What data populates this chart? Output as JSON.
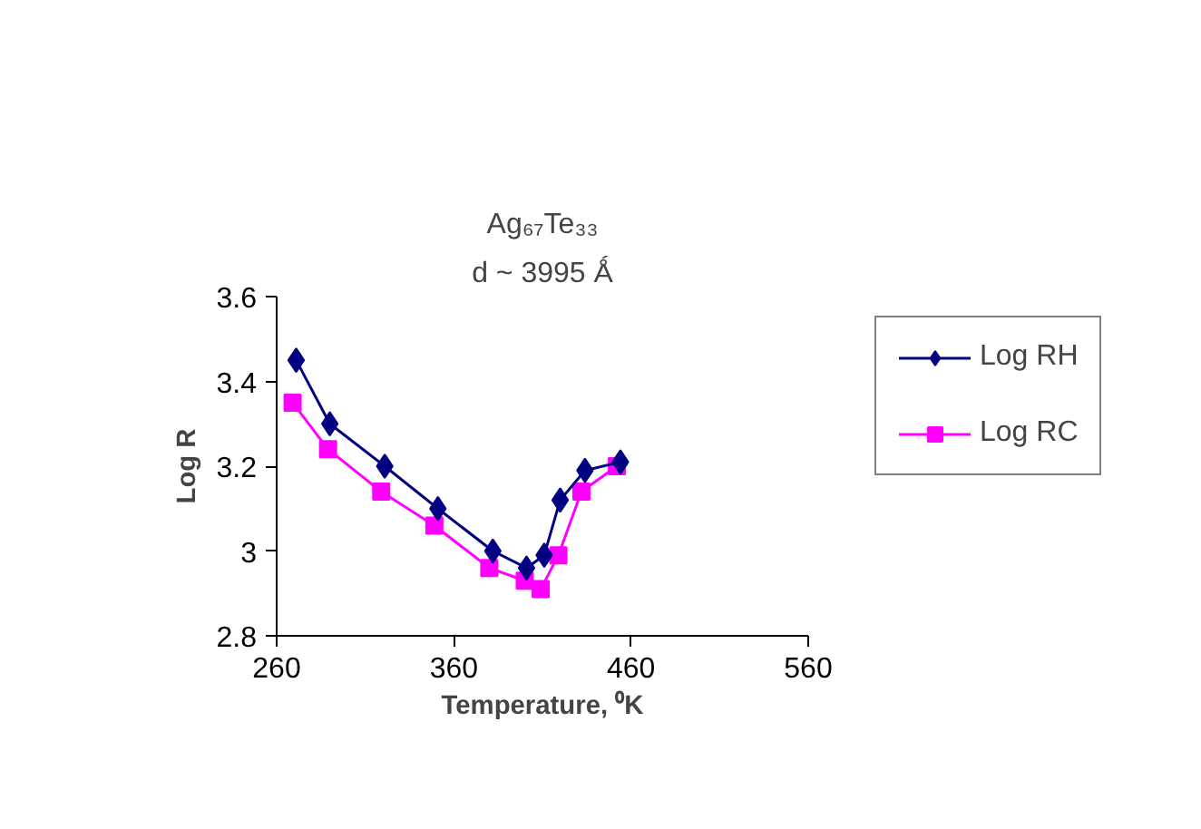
{
  "chart_data": {
    "type": "line",
    "title": "Ag₆₇Te₃₃",
    "subtitle": "d ~ 3995 Ǻ",
    "xlabel": "Temperature, ⁰K",
    "ylabel": "Log R",
    "xlim": [
      260,
      560
    ],
    "xticks": [
      260,
      360,
      460,
      560
    ],
    "ylim": [
      2.8,
      3.6
    ],
    "yticks": [
      2.8,
      3,
      3.2,
      3.4,
      3.6
    ],
    "grid": false,
    "legend": "right",
    "line_style": "solid",
    "series": [
      {
        "name": "Log RH",
        "color": "#000080",
        "marker": "diamond",
        "x": [
          271,
          290,
          321,
          351,
          382,
          401,
          411,
          420,
          434,
          454
        ],
        "values": [
          3.45,
          3.3,
          3.2,
          3.1,
          3.0,
          2.96,
          2.99,
          3.12,
          3.19,
          3.21
        ]
      },
      {
        "name": "Log RC",
        "color": "#ff00ff",
        "marker": "square",
        "x": [
          269,
          289,
          319,
          349,
          380,
          400,
          409,
          419,
          432,
          452
        ],
        "values": [
          3.35,
          3.24,
          3.14,
          3.06,
          2.96,
          2.93,
          2.91,
          2.99,
          3.14,
          3.2
        ]
      }
    ]
  }
}
